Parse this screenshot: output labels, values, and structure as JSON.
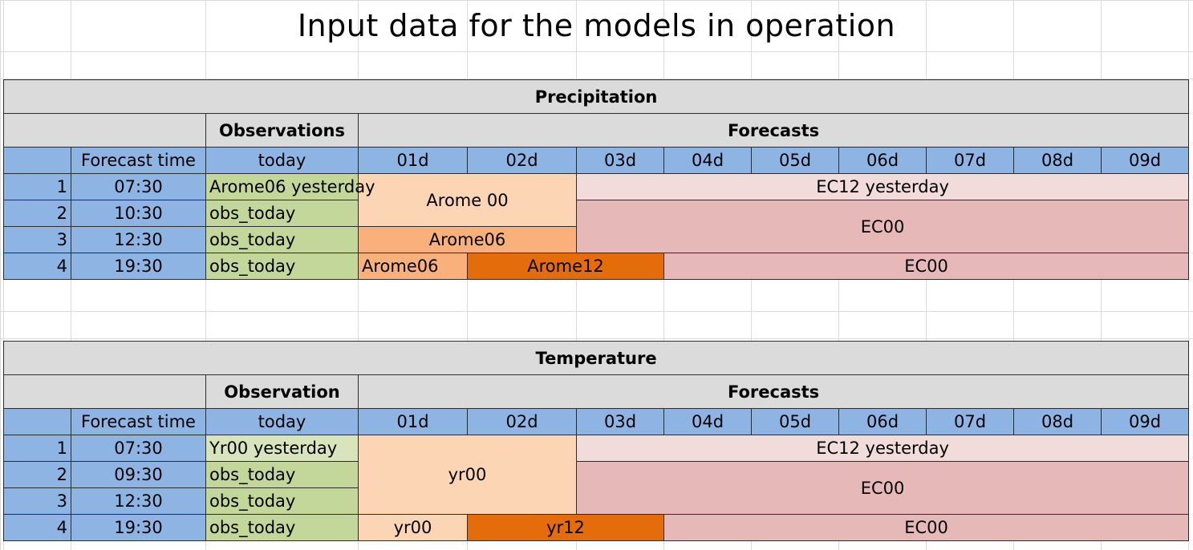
{
  "title": "Input data for the models in operation",
  "precipitation": {
    "section": "Precipitation",
    "obs_header": "Observations",
    "fc_header": "Forecasts",
    "col_forecast_time": "Forecast time",
    "col_today": "today",
    "days": [
      "01d",
      "02d",
      "03d",
      "04d",
      "05d",
      "06d",
      "07d",
      "08d",
      "09d"
    ],
    "rows": [
      {
        "n": "1",
        "time": "07:30",
        "obs": "Arome06 yesterday"
      },
      {
        "n": "2",
        "time": "10:30",
        "obs": "obs_today"
      },
      {
        "n": "3",
        "time": "12:30",
        "obs": "obs_today"
      },
      {
        "n": "4",
        "time": "19:30",
        "obs": "obs_today"
      }
    ],
    "blocks": {
      "arome00": "Arome 00",
      "ec12_yesterday": "EC12 yesterday",
      "ec00_a": "EC00",
      "arome06_r3": "Arome06",
      "arome06_r4": "Arome06",
      "arome12": "Arome12",
      "ec00_b": "EC00"
    }
  },
  "temperature": {
    "section": "Temperature",
    "obs_header": "Observation",
    "fc_header": "Forecasts",
    "col_forecast_time": "Forecast time",
    "col_today": "today",
    "days": [
      "01d",
      "02d",
      "03d",
      "04d",
      "05d",
      "06d",
      "07d",
      "08d",
      "09d"
    ],
    "rows": [
      {
        "n": "1",
        "time": "07:30",
        "obs": "Yr00 yesterday"
      },
      {
        "n": "2",
        "time": "09:30",
        "obs": "obs_today"
      },
      {
        "n": "3",
        "time": "12:30",
        "obs": "obs_today"
      },
      {
        "n": "4",
        "time": "19:30",
        "obs": "obs_today"
      }
    ],
    "blocks": {
      "yr00": "yr00",
      "ec12_yesterday": "EC12 yesterday",
      "ec00_a": "EC00",
      "yr00_r4": "yr00",
      "yr12": "yr12",
      "ec00_b": "EC00"
    }
  }
}
